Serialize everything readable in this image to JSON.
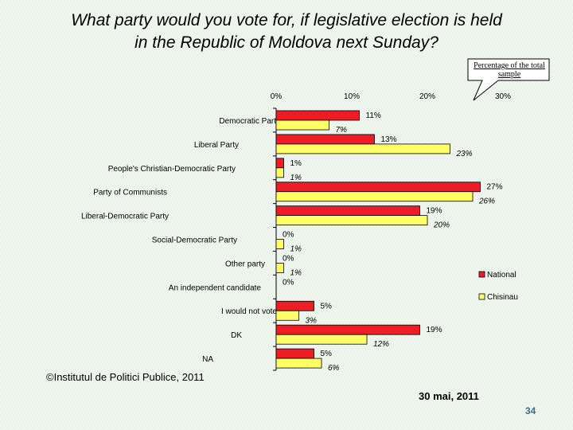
{
  "title_line1": "What party would you vote for, if legislative election is held",
  "title_line2": "in the Republic of Moldova next Sunday?",
  "callout_text": "Percentage of the total sample",
  "copyright": "©Institutul de Politici Publice, 2011",
  "date": "30 mai, 2011",
  "page_number": "34",
  "colors": {
    "national": "#ee1c24",
    "chisinau": "#ffff66",
    "bar_border": "#000000"
  },
  "chart_data": {
    "type": "bar",
    "orientation": "horizontal",
    "xlim": [
      0,
      30
    ],
    "ticks": [
      {
        "value": 0,
        "label": "0%"
      },
      {
        "value": 10,
        "label": "10%"
      },
      {
        "value": 20,
        "label": "20%"
      },
      {
        "value": 30,
        "label": "30%"
      }
    ],
    "categories": [
      "Democratic Party",
      "Liberal Party",
      "People's Christian-Democratic Party",
      "Party of Communists",
      "Liberal-Democratic Party",
      "Social-Democratic Party",
      "Other party",
      "An independent candidate",
      "I would not vote",
      "DK",
      "NA"
    ],
    "series": [
      {
        "name": "National",
        "values": [
          11,
          13,
          1,
          27,
          19,
          0,
          0,
          0,
          5,
          19,
          5
        ],
        "labels": [
          "11%",
          "13%",
          "1%",
          "27%",
          "19%",
          "0%",
          "0%",
          "0%",
          "5%",
          "19%",
          "5%"
        ]
      },
      {
        "name": "Chisinau",
        "values": [
          7,
          23,
          1,
          26,
          20,
          1,
          1,
          null,
          3,
          12,
          6
        ],
        "labels": [
          "7%",
          "23%",
          "1%",
          "26%",
          "20%",
          "1%",
          "1%",
          "",
          "3%",
          "12%",
          "6%"
        ]
      }
    ],
    "legend": [
      "National",
      "Chisinau"
    ],
    "legend_position": "right"
  }
}
